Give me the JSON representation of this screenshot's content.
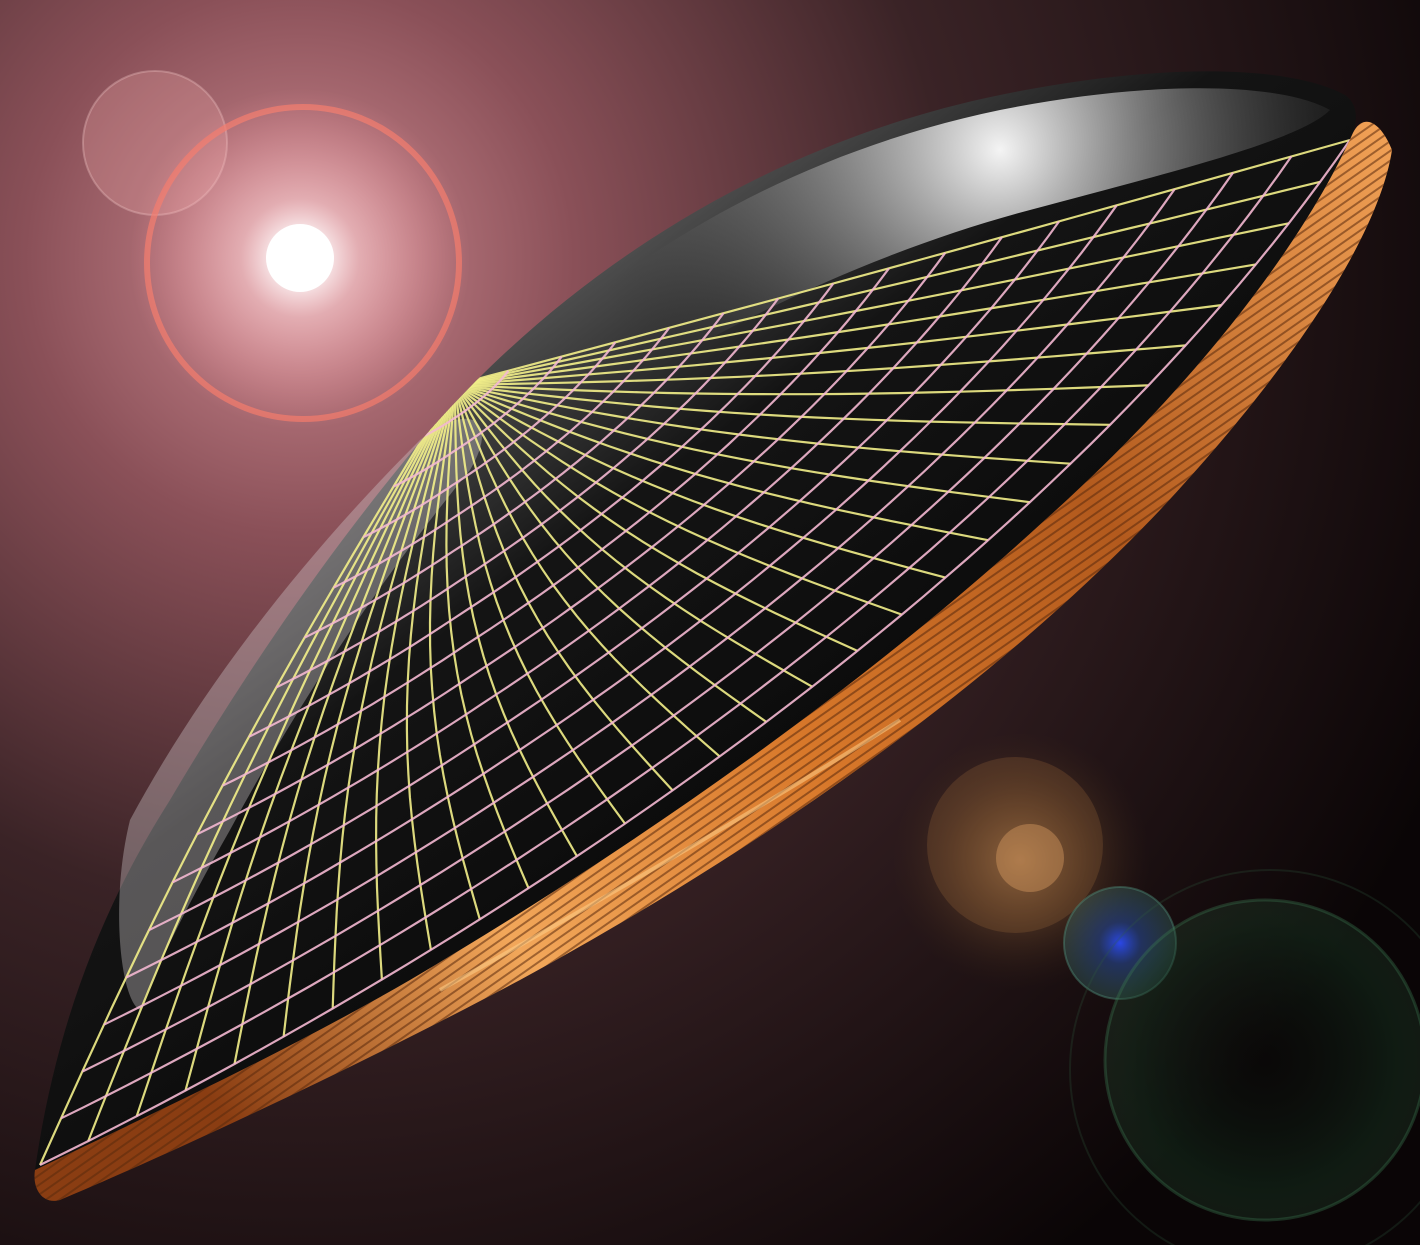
{
  "scene": {
    "subject": "lens-dish",
    "colors": {
      "background_glow": "#b9747c",
      "background_mid": "#5c3b3f",
      "background_dark": "#0e0708",
      "flare_core": "#ffffff",
      "flare_ring": "#f07a6a",
      "flare_halo": "#e8a6a6",
      "dish_highlight": "#f2f2f2",
      "dish_body": "#1b1b1c",
      "dish_shadow": "#050505",
      "rim_orange": "#d8782a",
      "rim_orange_light": "#f2a75a",
      "rim_orange_dark": "#8a3d12",
      "grid_yellow": "#f3f08a",
      "grid_pink": "#f4b8d2",
      "ghost_brown": "#8a5a2f",
      "ghost_teal": "#4b7c6d",
      "ghost_blue": "#2a4dff",
      "ghost_green": "#2d5b3c"
    }
  }
}
